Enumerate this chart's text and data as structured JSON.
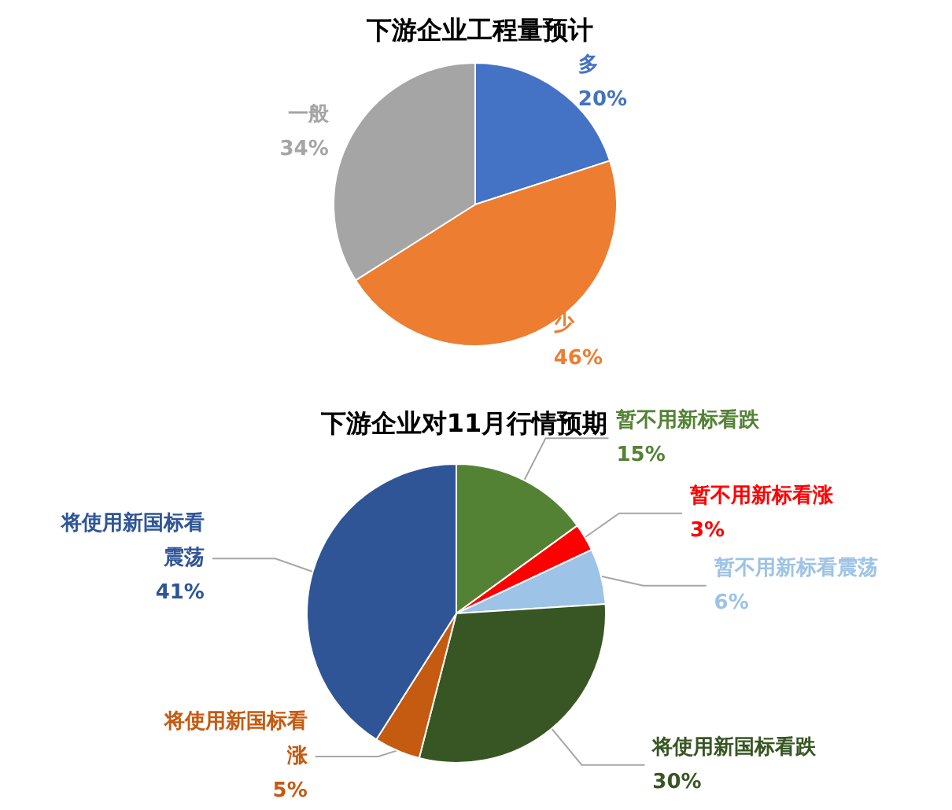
{
  "chart_data": [
    {
      "type": "pie",
      "title": "下游企业工程量预计",
      "categories": [
        "多",
        "少",
        "一般"
      ],
      "values": [
        20,
        46,
        34
      ],
      "colors": [
        "#4472c4",
        "#ed7d31",
        "#a5a5a5"
      ],
      "value_labels": [
        "20%",
        "46%",
        "34%"
      ]
    },
    {
      "type": "pie",
      "title": "下游企业对11月行情预期",
      "categories": [
        "暂不用新标看跌",
        "暂不用新标看涨",
        "暂不用新标看震荡",
        "将使用新国标看跌",
        "将使用新国标看涨",
        "将使用新国标看震荡"
      ],
      "values": [
        15,
        3,
        6,
        30,
        5,
        41
      ],
      "colors": [
        "#548235",
        "#ff0000",
        "#9dc3e6",
        "#375623",
        "#c55a11",
        "#2f5597"
      ],
      "value_labels": [
        "15%",
        "3%",
        "6%",
        "30%",
        "5%",
        "41%"
      ]
    }
  ]
}
